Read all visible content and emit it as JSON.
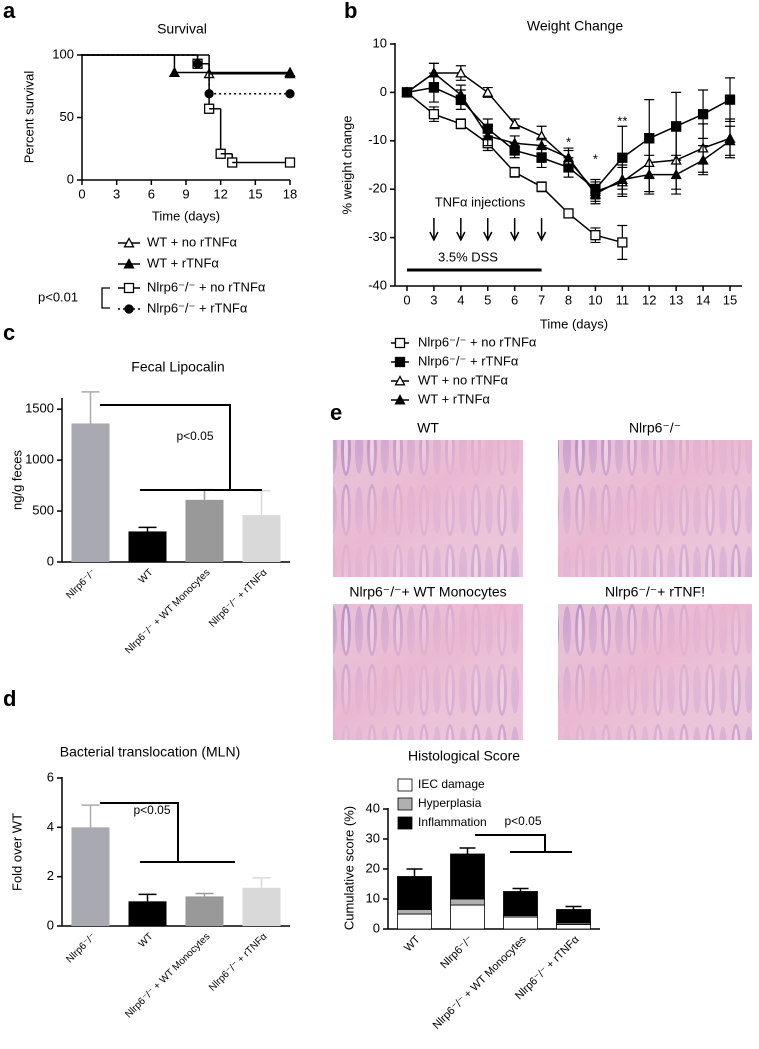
{
  "panel_labels": [
    "a",
    "b",
    "c",
    "d",
    "e"
  ],
  "histology_images": [
    "WT",
    "Nlrp6⁻/⁻",
    "Nlrp6⁻/⁻+ WT Monocytes",
    "Nlrp6⁻/⁻+ rTNF!"
  ],
  "chart_data": [
    {
      "type": "step",
      "title": "Survival",
      "xlabel": "Time (days)",
      "ylabel": "Percent survival",
      "xlim": [
        0,
        18
      ],
      "xticks": [
        0,
        3,
        6,
        9,
        12,
        15,
        18
      ],
      "ylim": [
        0,
        100
      ],
      "yticks": [
        0,
        50,
        100
      ],
      "legend": "below",
      "series": [
        {
          "name": "WT + no rTNFα",
          "color": "#000000",
          "marker": "triangle",
          "filled": false,
          "line_style": "solid",
          "x": [
            0,
            11,
            18
          ],
          "values": [
            100,
            85,
            85
          ]
        },
        {
          "name": "WT + rTNFα",
          "color": "#000000",
          "marker": "triangle",
          "filled": true,
          "line_style": "solid",
          "x": [
            0,
            8,
            18
          ],
          "values": [
            100,
            86,
            86
          ]
        },
        {
          "name": "Nlrp6⁻/⁻ + no rTNFα",
          "color": "#000000",
          "marker": "square",
          "filled": false,
          "line_style": "solid",
          "x": [
            0,
            10,
            11,
            12,
            13,
            18
          ],
          "values": [
            100,
            93,
            57,
            21,
            14,
            14
          ]
        },
        {
          "name": "Nlrp6⁻/⁻ + rTNFα",
          "color": "#000000",
          "marker": "circle",
          "filled": true,
          "line_style": "dotted",
          "x": [
            0,
            10,
            11,
            18
          ],
          "values": [
            100,
            93,
            69,
            69
          ]
        }
      ],
      "annotations": [
        "p<0.01"
      ]
    },
    {
      "type": "line",
      "title": "Weight Change",
      "xlabel": "Time (days)",
      "ylabel": "% weight change",
      "categories": [
        "0",
        "3",
        "4",
        "5",
        "6",
        "7",
        "8",
        "10",
        "11",
        "12",
        "13",
        "14",
        "15"
      ],
      "ylim": [
        -40,
        10
      ],
      "yticks": [
        -40,
        -30,
        -20,
        -10,
        0,
        10
      ],
      "legend": "below",
      "series": [
        {
          "name": "Nlrp6⁻/⁻ + no rTNFα",
          "color": "#000000",
          "marker": "square",
          "filled": false,
          "values": [
            0,
            -4.5,
            -6.5,
            -10.5,
            -16.5,
            -19.5,
            -25,
            -29.5,
            -31,
            null,
            null,
            null,
            null
          ],
          "errors": [
            null,
            1.5,
            1,
            1.5,
            1,
            1,
            0.5,
            1.5,
            3.5,
            null,
            null,
            null,
            null
          ]
        },
        {
          "name": "Nlrp6⁻/⁻ + rTNFα",
          "color": "#000000",
          "marker": "square",
          "filled": true,
          "values": [
            0,
            1,
            -1.5,
            -7.5,
            -12,
            -13.5,
            -15.5,
            -20,
            -13.5,
            -9.5,
            -7,
            -4.5,
            -1.5
          ],
          "errors": [
            null,
            3,
            2,
            2,
            1.5,
            2,
            2,
            2,
            6.5,
            8,
            7,
            5,
            4.5
          ]
        },
        {
          "name": "WT + no rTNFα",
          "color": "#000000",
          "marker": "triangle",
          "filled": false,
          "values": [
            0,
            4,
            4,
            0,
            -6.5,
            -9,
            -14,
            -20.5,
            -18.5,
            -14.5,
            -14,
            -11.5,
            -9.5
          ],
          "errors": [
            null,
            2,
            1.5,
            1,
            1,
            2,
            2,
            2,
            3,
            6,
            6,
            5,
            4
          ]
        },
        {
          "name": "WT + rTNFα",
          "color": "#000000",
          "marker": "triangle",
          "filled": true,
          "values": [
            0,
            4,
            -0.5,
            -9,
            -10.5,
            -11,
            -13.5,
            -21,
            -18,
            -17,
            -17,
            -14,
            -10
          ],
          "errors": [
            null,
            2,
            2,
            2,
            1.5,
            1.5,
            2,
            2,
            3,
            4,
            4,
            3,
            3
          ]
        }
      ],
      "annotations": [
        "TNFα injections",
        "3.5% DSS",
        "*",
        "*",
        "**"
      ]
    },
    {
      "type": "bar",
      "title": "Fecal Lipocalin",
      "ylabel": "ng/g feces",
      "categories": [
        "Nlrp6⁻/⁻",
        "WT",
        "Nlrp6⁻/⁻ + WT Monocytes",
        "Nlrp6⁻/⁻ + rTNFα"
      ],
      "values": [
        1360,
        300,
        610,
        460
      ],
      "errors": [
        310,
        40,
        100,
        240
      ],
      "colors": [
        "#a9a9b1",
        "#000000",
        "#999999",
        "#d9d9d9"
      ],
      "ylim": [
        0,
        1600
      ],
      "yticks": [
        0,
        500,
        1000,
        1500
      ],
      "annotations": [
        "p<0.05"
      ]
    },
    {
      "type": "bar",
      "title": "Bacterial translocation (MLN)",
      "ylabel": "Fold over WT",
      "categories": [
        "Nlrp6⁻/⁻",
        "WT",
        "Nlrp6⁻/⁻ + WT Monocytes",
        "Nlrp6⁻/⁻ + rTNFα"
      ],
      "values": [
        4.0,
        1.0,
        1.2,
        1.55
      ],
      "errors": [
        0.9,
        0.28,
        0.12,
        0.4
      ],
      "colors": [
        "#a9a9b1",
        "#000000",
        "#999999",
        "#d9d9d9"
      ],
      "ylim": [
        0,
        6
      ],
      "yticks": [
        0,
        2,
        4,
        6
      ],
      "annotations": [
        "p<0.05"
      ]
    },
    {
      "type": "stacked_bar",
      "title": "Histological Score",
      "ylabel": "Cumulative score (%)",
      "categories": [
        "WT",
        "Nlrp6⁻/⁻",
        "Nlrp6⁻/⁻ + WT Monocytes",
        "Nlrp6⁻/⁻ + rTNFα"
      ],
      "ylim": [
        0,
        40
      ],
      "yticks": [
        0,
        10,
        20,
        30,
        40
      ],
      "legend": "upper left",
      "series": [
        {
          "name": "IEC damage",
          "color": "#ffffff",
          "values": [
            5,
            8,
            4,
            1.5
          ]
        },
        {
          "name": "Hyperplasia",
          "color": "#b0b0b0",
          "values": [
            1.5,
            2,
            0.5,
            0.5
          ]
        },
        {
          "name": "Inflammation",
          "color": "#000000",
          "values": [
            11,
            15,
            8,
            4.5
          ],
          "errors": [
            2.5,
            2,
            1,
            1
          ]
        }
      ],
      "annotations": [
        "p<0.05"
      ]
    }
  ]
}
